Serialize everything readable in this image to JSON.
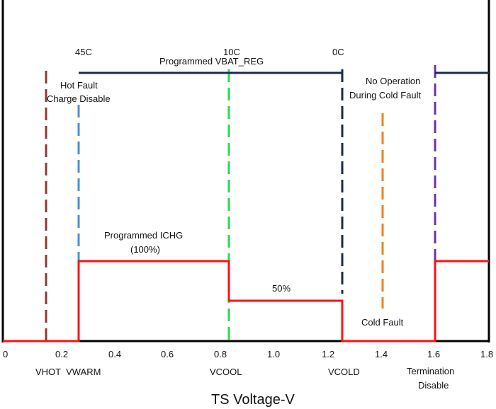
{
  "temperatures": {
    "t45": "45C",
    "t10": "10C",
    "t0": "0C"
  },
  "labels": {
    "vbat_reg": "Programmed VBAT_REG",
    "hot_fault_1": "Hot Fault",
    "hot_fault_2": "Charge Disable",
    "no_op_1": "No Operation",
    "no_op_2": "During Cold Fault",
    "ichg_1": "Programmed ICHG",
    "ichg_2": "(100%)",
    "half": "50%",
    "cold_fault": "Cold Fault"
  },
  "x_ticks": [
    "0",
    "0.2",
    "0.4",
    "0.6",
    "0.8",
    "1.0",
    "1.2",
    "1.4",
    "1.6",
    "1.8"
  ],
  "thresholds": {
    "vhot_vwarm": "VHOT  VWARM",
    "vcool": "VCOOL",
    "vcold": "VCOLD",
    "term_1": "Termination",
    "term_2": "Disable"
  },
  "x_axis_title": "TS Voltage-V",
  "colors": {
    "vhot": "#8b3a32",
    "vwarm": "#4a90d9",
    "vcool": "#22dd55",
    "vcold": "#1a2a4a",
    "cold_fault": "#f08020",
    "termination": "#7030a0",
    "current": "#ff1010",
    "voltage": "#1a2a4a"
  }
}
